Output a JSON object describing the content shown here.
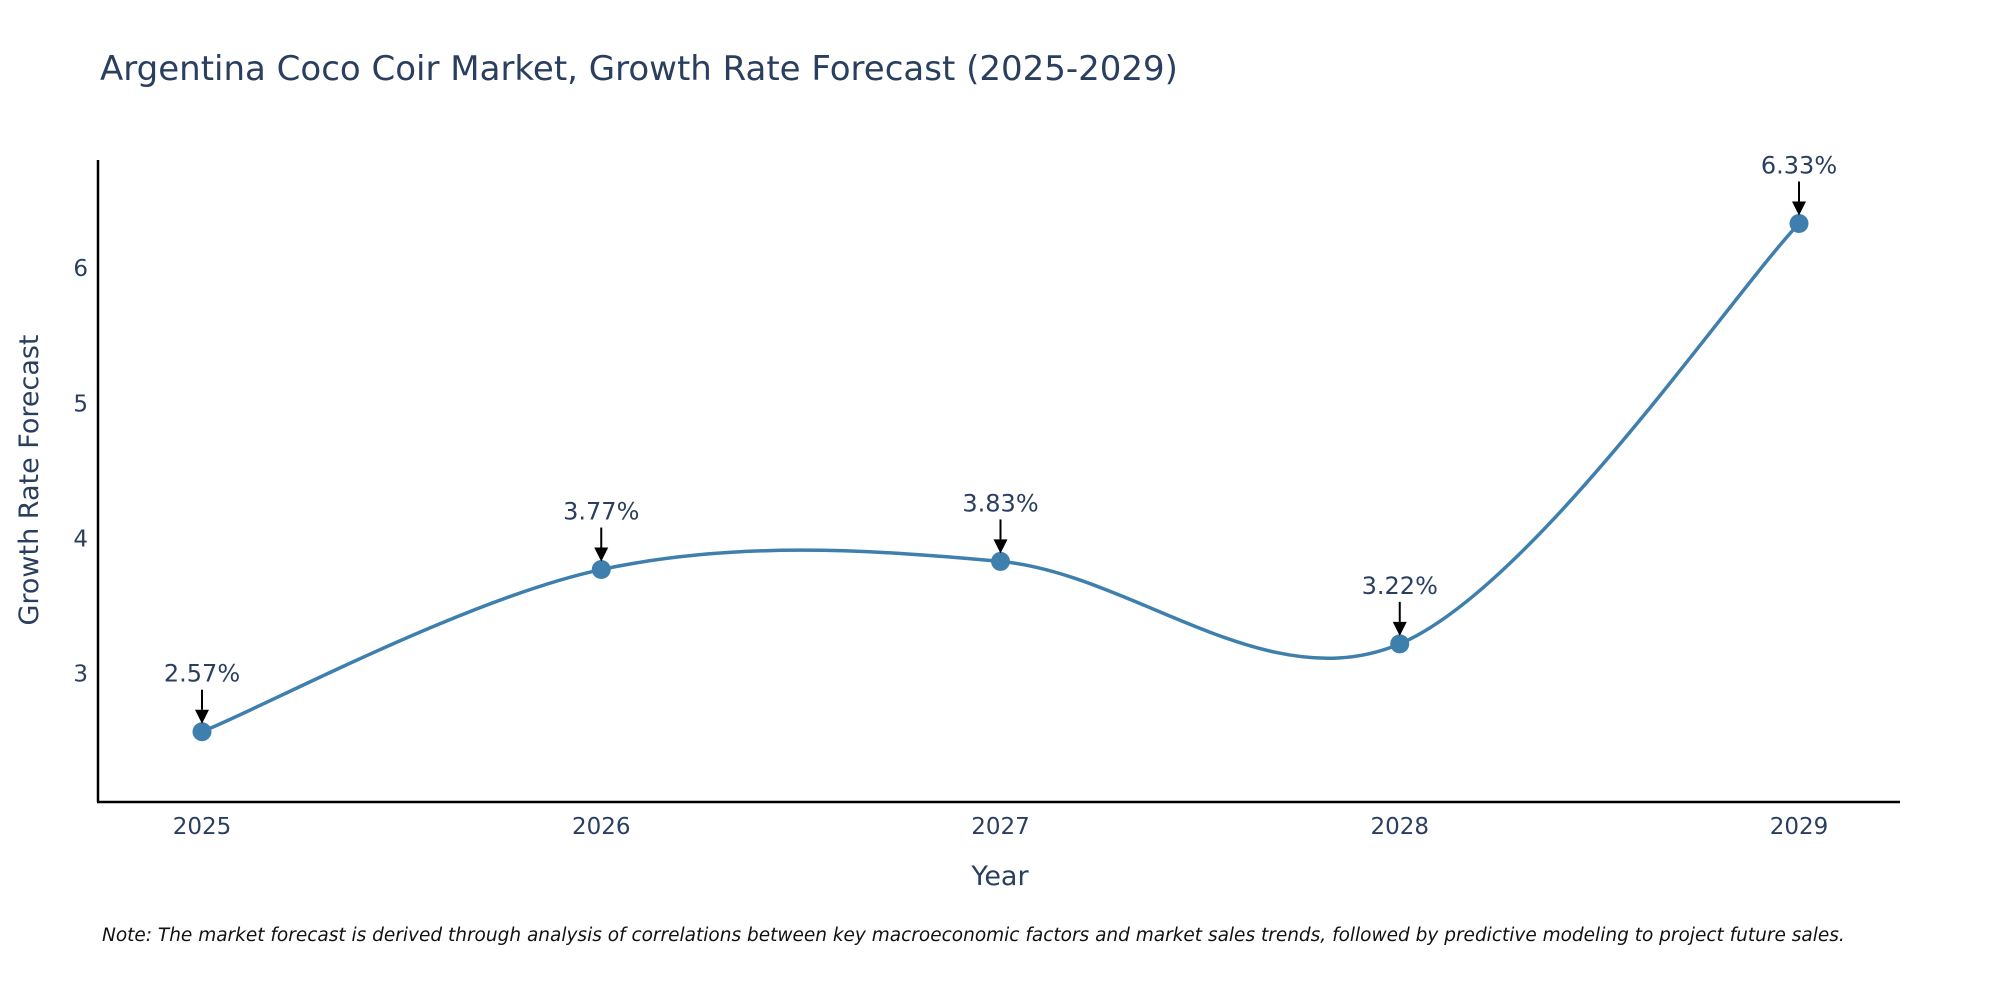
{
  "chart_data": {
    "type": "line",
    "title": "Argentina Coco Coir Market, Growth Rate Forecast (2025-2029)",
    "xlabel": "Year",
    "ylabel": "Growth Rate Forecast",
    "categories": [
      "2025",
      "2026",
      "2027",
      "2028",
      "2029"
    ],
    "series": [
      {
        "name": "Growth Rate Forecast",
        "values": [
          2.57,
          3.77,
          3.83,
          3.22,
          6.33
        ],
        "labels": [
          "2.57%",
          "3.77%",
          "3.83%",
          "3.22%",
          "6.33%"
        ],
        "color": "#3f7fad"
      }
    ],
    "y_ticks": [
      "3",
      "4",
      "5",
      "6"
    ],
    "ylim": [
      2.05,
      6.8
    ],
    "line_shape": "spline",
    "grid": false,
    "note": "Note: The market forecast is derived through analysis of correlations between key macroeconomic factors and market sales trends, followed by predictive modeling to project future sales."
  }
}
